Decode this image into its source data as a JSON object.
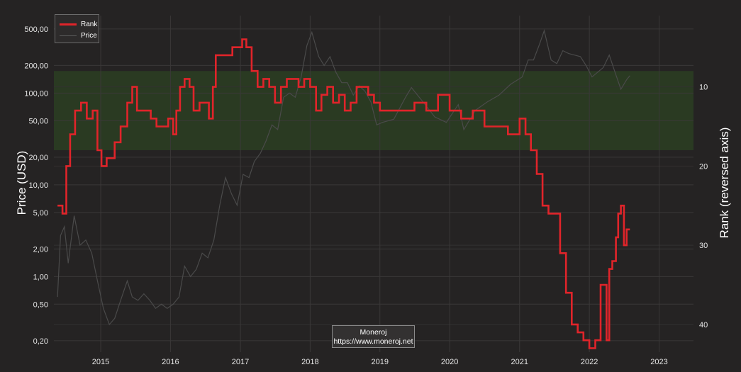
{
  "chart_data": {
    "type": "line",
    "title": "",
    "ylabel": "Price (USD)",
    "y2label": "Rank (reversed axis)",
    "xlabel": "",
    "y_scale": "log",
    "ylim": [
      0.15,
      700
    ],
    "y2lim": [
      1,
      43.5
    ],
    "y2_reversed": true,
    "xlim": [
      "2014-05-01",
      "2023-06-30"
    ],
    "x_ticks": [
      "2015",
      "2016",
      "2017",
      "2018",
      "2019",
      "2020",
      "2021",
      "2022",
      "2023"
    ],
    "y_ticks": [
      {
        "value": 0.2,
        "label": "0,20"
      },
      {
        "value": 0.5,
        "label": "0,50"
      },
      {
        "value": 1,
        "label": "1,00"
      },
      {
        "value": 2,
        "label": "2,00"
      },
      {
        "value": 5,
        "label": "5,00"
      },
      {
        "value": 10,
        "label": "10,00"
      },
      {
        "value": 20,
        "label": "20,00"
      },
      {
        "value": 50,
        "label": "50,00"
      },
      {
        "value": 100,
        "label": "100,00"
      },
      {
        "value": 200,
        "label": "200,00"
      },
      {
        "value": 500,
        "label": "500,00"
      }
    ],
    "y2_ticks": [
      {
        "value": 10,
        "label": "10"
      },
      {
        "value": 20,
        "label": "20"
      },
      {
        "value": 30,
        "label": "30"
      },
      {
        "value": 40,
        "label": "40"
      }
    ],
    "grid": true,
    "legend_position": "top-left",
    "highlight_band": {
      "rank_from": 8,
      "rank_to": 18,
      "color": "#2a3a22"
    },
    "series": [
      {
        "name": "Rank",
        "axis": "right",
        "color": "#e0242a",
        "points": [
          [
            "2014-05-20",
            25
          ],
          [
            "2014-06-15",
            26
          ],
          [
            "2014-07-05",
            20
          ],
          [
            "2014-07-25",
            16
          ],
          [
            "2014-08-20",
            13
          ],
          [
            "2014-09-20",
            12
          ],
          [
            "2014-10-20",
            14
          ],
          [
            "2014-11-20",
            13
          ],
          [
            "2014-12-15",
            18
          ],
          [
            "2015-01-05",
            20
          ],
          [
            "2015-02-01",
            19
          ],
          [
            "2015-03-15",
            17
          ],
          [
            "2015-04-15",
            15
          ],
          [
            "2015-05-20",
            12
          ],
          [
            "2015-06-15",
            10
          ],
          [
            "2015-07-10",
            13
          ],
          [
            "2015-08-15",
            13
          ],
          [
            "2015-09-20",
            14
          ],
          [
            "2015-10-20",
            15
          ],
          [
            "2015-11-20",
            15
          ],
          [
            "2015-12-20",
            14
          ],
          [
            "2016-01-15",
            16
          ],
          [
            "2016-02-01",
            13
          ],
          [
            "2016-02-20",
            10
          ],
          [
            "2016-03-15",
            9
          ],
          [
            "2016-04-10",
            10
          ],
          [
            "2016-05-01",
            13
          ],
          [
            "2016-06-01",
            12
          ],
          [
            "2016-07-01",
            12
          ],
          [
            "2016-07-20",
            14
          ],
          [
            "2016-08-10",
            10
          ],
          [
            "2016-08-25",
            6
          ],
          [
            "2016-09-20",
            6
          ],
          [
            "2016-10-20",
            6
          ],
          [
            "2016-11-20",
            5
          ],
          [
            "2016-12-20",
            5
          ],
          [
            "2017-01-10",
            4
          ],
          [
            "2017-02-01",
            5
          ],
          [
            "2017-03-01",
            8
          ],
          [
            "2017-04-01",
            10
          ],
          [
            "2017-05-01",
            9
          ],
          [
            "2017-06-01",
            10
          ],
          [
            "2017-07-01",
            12
          ],
          [
            "2017-08-01",
            10
          ],
          [
            "2017-09-01",
            9
          ],
          [
            "2017-10-01",
            9
          ],
          [
            "2017-11-01",
            10
          ],
          [
            "2017-12-01",
            9
          ],
          [
            "2018-01-01",
            10
          ],
          [
            "2018-02-01",
            13
          ],
          [
            "2018-03-01",
            11
          ],
          [
            "2018-04-01",
            10
          ],
          [
            "2018-05-01",
            12
          ],
          [
            "2018-06-01",
            11
          ],
          [
            "2018-07-01",
            13
          ],
          [
            "2018-08-01",
            12
          ],
          [
            "2018-09-01",
            10
          ],
          [
            "2018-10-01",
            10
          ],
          [
            "2018-11-01",
            11
          ],
          [
            "2018-12-01",
            12
          ],
          [
            "2019-01-01",
            13
          ],
          [
            "2019-03-01",
            13
          ],
          [
            "2019-05-01",
            13
          ],
          [
            "2019-07-01",
            12
          ],
          [
            "2019-09-01",
            13
          ],
          [
            "2019-11-01",
            11
          ],
          [
            "2020-01-01",
            13
          ],
          [
            "2020-03-01",
            14
          ],
          [
            "2020-05-01",
            13
          ],
          [
            "2020-07-01",
            15
          ],
          [
            "2020-09-01",
            15
          ],
          [
            "2020-11-01",
            16
          ],
          [
            "2021-01-01",
            14
          ],
          [
            "2021-02-01",
            16
          ],
          [
            "2021-03-01",
            18
          ],
          [
            "2021-04-01",
            21
          ],
          [
            "2021-05-01",
            25
          ],
          [
            "2021-06-01",
            26
          ],
          [
            "2021-07-01",
            26
          ],
          [
            "2021-08-01",
            31
          ],
          [
            "2021-09-01",
            36
          ],
          [
            "2021-10-01",
            40
          ],
          [
            "2021-11-01",
            41
          ],
          [
            "2021-12-01",
            42
          ],
          [
            "2022-01-01",
            43
          ],
          [
            "2022-02-01",
            42
          ],
          [
            "2022-03-01",
            35
          ],
          [
            "2022-04-01",
            42
          ],
          [
            "2022-04-15",
            33
          ],
          [
            "2022-05-01",
            32
          ],
          [
            "2022-05-20",
            29
          ],
          [
            "2022-06-01",
            26
          ],
          [
            "2022-06-15",
            25
          ],
          [
            "2022-07-01",
            30
          ],
          [
            "2022-07-15",
            28
          ],
          [
            "2022-08-01",
            28
          ]
        ]
      },
      {
        "name": "Price",
        "axis": "left",
        "color": "#4a4a4a",
        "points": [
          [
            "2014-05-20",
            0.6
          ],
          [
            "2014-06-05",
            2.8
          ],
          [
            "2014-06-25",
            3.5
          ],
          [
            "2014-07-15",
            1.4
          ],
          [
            "2014-08-15",
            4.6
          ],
          [
            "2014-09-15",
            2.2
          ],
          [
            "2014-10-15",
            2.5
          ],
          [
            "2014-11-15",
            1.8
          ],
          [
            "2014-12-15",
            0.9
          ],
          [
            "2015-01-15",
            0.45
          ],
          [
            "2015-02-15",
            0.3
          ],
          [
            "2015-03-15",
            0.35
          ],
          [
            "2015-04-15",
            0.55
          ],
          [
            "2015-05-20",
            0.9
          ],
          [
            "2015-06-15",
            0.6
          ],
          [
            "2015-07-15",
            0.55
          ],
          [
            "2015-08-15",
            0.65
          ],
          [
            "2015-09-15",
            0.55
          ],
          [
            "2015-10-15",
            0.45
          ],
          [
            "2015-11-15",
            0.5
          ],
          [
            "2015-12-15",
            0.45
          ],
          [
            "2016-01-15",
            0.5
          ],
          [
            "2016-02-15",
            0.6
          ],
          [
            "2016-03-15",
            1.3
          ],
          [
            "2016-04-15",
            1.0
          ],
          [
            "2016-05-15",
            1.2
          ],
          [
            "2016-06-15",
            1.8
          ],
          [
            "2016-07-15",
            1.6
          ],
          [
            "2016-08-15",
            2.5
          ],
          [
            "2016-09-15",
            6.0
          ],
          [
            "2016-10-15",
            12
          ],
          [
            "2016-11-15",
            8
          ],
          [
            "2016-12-15",
            6
          ],
          [
            "2017-01-15",
            13
          ],
          [
            "2017-02-15",
            12
          ],
          [
            "2017-03-15",
            18
          ],
          [
            "2017-04-15",
            22
          ],
          [
            "2017-05-15",
            30
          ],
          [
            "2017-06-15",
            45
          ],
          [
            "2017-07-15",
            40
          ],
          [
            "2017-08-15",
            90
          ],
          [
            "2017-09-15",
            100
          ],
          [
            "2017-10-15",
            90
          ],
          [
            "2017-11-15",
            150
          ],
          [
            "2017-12-15",
            330
          ],
          [
            "2018-01-10",
            460
          ],
          [
            "2018-02-15",
            250
          ],
          [
            "2018-03-15",
            200
          ],
          [
            "2018-04-15",
            250
          ],
          [
            "2018-05-15",
            170
          ],
          [
            "2018-06-15",
            130
          ],
          [
            "2018-07-15",
            130
          ],
          [
            "2018-08-15",
            95
          ],
          [
            "2018-09-15",
            120
          ],
          [
            "2018-10-15",
            105
          ],
          [
            "2018-11-15",
            80
          ],
          [
            "2018-12-15",
            45
          ],
          [
            "2019-01-15",
            48
          ],
          [
            "2019-03-15",
            52
          ],
          [
            "2019-05-15",
            90
          ],
          [
            "2019-06-15",
            115
          ],
          [
            "2019-08-15",
            80
          ],
          [
            "2019-10-15",
            55
          ],
          [
            "2019-12-15",
            48
          ],
          [
            "2020-02-15",
            75
          ],
          [
            "2020-03-15",
            40
          ],
          [
            "2020-05-15",
            65
          ],
          [
            "2020-07-15",
            80
          ],
          [
            "2020-09-15",
            95
          ],
          [
            "2020-11-15",
            125
          ],
          [
            "2021-01-15",
            150
          ],
          [
            "2021-02-15",
            230
          ],
          [
            "2021-03-15",
            230
          ],
          [
            "2021-04-15",
            340
          ],
          [
            "2021-05-10",
            480
          ],
          [
            "2021-06-15",
            230
          ],
          [
            "2021-07-15",
            210
          ],
          [
            "2021-08-15",
            290
          ],
          [
            "2021-09-15",
            270
          ],
          [
            "2021-10-15",
            260
          ],
          [
            "2021-11-15",
            250
          ],
          [
            "2021-12-15",
            200
          ],
          [
            "2022-01-15",
            150
          ],
          [
            "2022-02-15",
            170
          ],
          [
            "2022-03-15",
            190
          ],
          [
            "2022-04-15",
            260
          ],
          [
            "2022-05-15",
            170
          ],
          [
            "2022-06-15",
            110
          ],
          [
            "2022-07-15",
            140
          ],
          [
            "2022-08-01",
            155
          ]
        ]
      }
    ],
    "annotation": {
      "line1": "Moneroj",
      "line2": "https://www.moneroj.net"
    }
  }
}
